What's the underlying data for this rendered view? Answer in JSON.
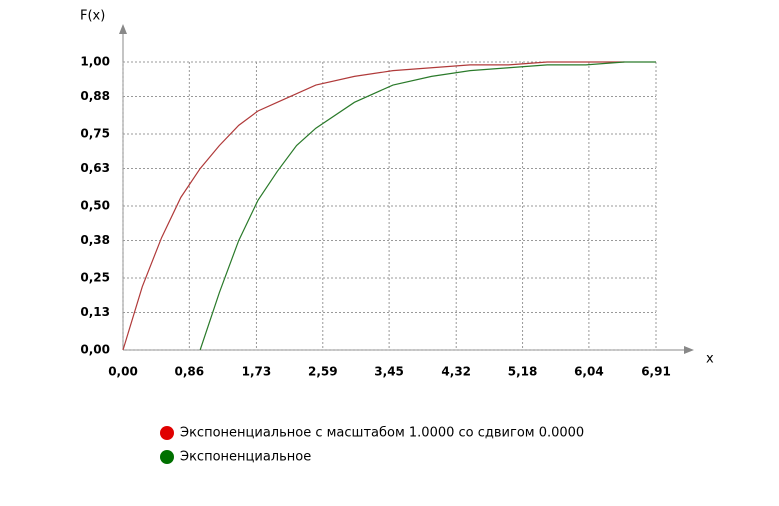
{
  "chart_data": {
    "type": "line",
    "y_label": "F(x)",
    "x_label": "x",
    "xlim": [
      0,
      6.91
    ],
    "ylim": [
      0,
      1
    ],
    "xticks": [
      {
        "value": 0,
        "label": "0,00"
      },
      {
        "value": 0.86,
        "label": "0,86"
      },
      {
        "value": 1.73,
        "label": "1,73"
      },
      {
        "value": 2.59,
        "label": "2,59"
      },
      {
        "value": 3.45,
        "label": "3,45"
      },
      {
        "value": 4.32,
        "label": "4,32"
      },
      {
        "value": 5.18,
        "label": "5,18"
      },
      {
        "value": 6.04,
        "label": "6,04"
      },
      {
        "value": 6.91,
        "label": "6,91"
      }
    ],
    "yticks": [
      {
        "value": 0,
        "label": "0,00"
      },
      {
        "value": 0.13,
        "label": "0,13"
      },
      {
        "value": 0.25,
        "label": "0,25"
      },
      {
        "value": 0.38,
        "label": "0,38"
      },
      {
        "value": 0.5,
        "label": "0,50"
      },
      {
        "value": 0.63,
        "label": "0,63"
      },
      {
        "value": 0.75,
        "label": "0,75"
      },
      {
        "value": 0.88,
        "label": "0,88"
      },
      {
        "value": 1,
        "label": "1,00"
      }
    ],
    "grid": true,
    "series": [
      {
        "name": "Экспоненциальное с масштабом 1.0000 со сдвигом 0.0000",
        "color": "#b03a3a",
        "legend_color": "#e00000",
        "x": [
          0,
          0.25,
          0.5,
          0.75,
          1,
          1.25,
          1.5,
          1.75,
          2,
          2.5,
          3,
          3.5,
          4,
          4.5,
          5,
          5.5,
          6,
          6.5
        ],
        "values": [
          0,
          0.22,
          0.39,
          0.53,
          0.63,
          0.71,
          0.78,
          0.83,
          0.86,
          0.92,
          0.95,
          0.97,
          0.98,
          0.99,
          0.99,
          1,
          1,
          1
        ]
      },
      {
        "name": "Экспоненциальное",
        "color": "#2a7a2a",
        "legend_color": "#007000",
        "x": [
          1,
          1.25,
          1.5,
          1.75,
          2,
          2.25,
          2.5,
          3,
          3.5,
          4,
          4.5,
          5,
          5.5,
          6,
          6.5,
          6.91
        ],
        "values": [
          0,
          0.2,
          0.38,
          0.52,
          0.62,
          0.71,
          0.77,
          0.86,
          0.92,
          0.95,
          0.97,
          0.98,
          0.99,
          0.99,
          1,
          1
        ]
      }
    ]
  }
}
